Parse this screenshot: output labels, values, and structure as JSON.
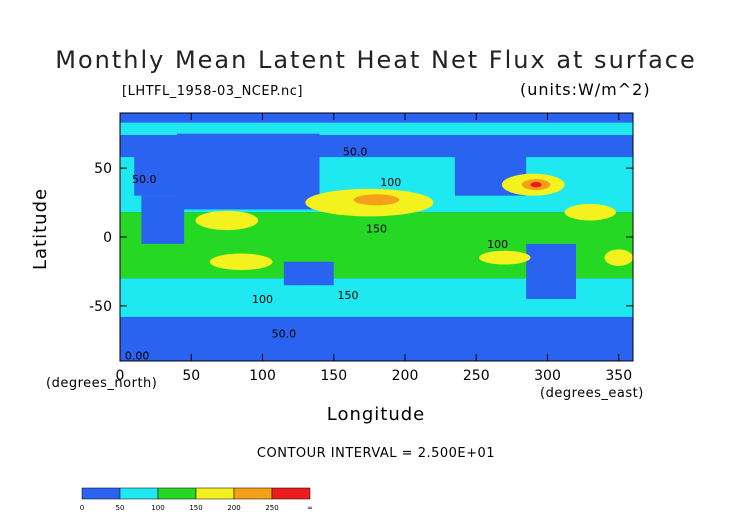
{
  "chart_data": {
    "type": "heatmap",
    "title": "Monthly Mean Latent Heat Net Flux at surface",
    "subtitle": "[LHTFL_1958-03_NCEP.nc]",
    "units_label": "(units:W/m^2)",
    "xlabel": "Longitude",
    "ylabel": "Latitude",
    "x_unit_label": "(degrees_east)",
    "y_unit_label": "(degrees_north)",
    "xlim": [
      0,
      360
    ],
    "ylim": [
      -90,
      90
    ],
    "x_ticks": [
      0,
      50,
      100,
      150,
      200,
      250,
      300,
      350
    ],
    "y_ticks": [
      -50,
      0,
      50
    ],
    "contour_interval_text": "CONTOUR INTERVAL = 2.500E+01",
    "contour_labels": [
      {
        "text": "50.0",
        "lon": 165,
        "lat": 62
      },
      {
        "text": "100",
        "lon": 190,
        "lat": 40
      },
      {
        "text": "50.0",
        "lon": 17,
        "lat": 42
      },
      {
        "text": "150",
        "lon": 180,
        "lat": 6
      },
      {
        "text": "100",
        "lon": 265,
        "lat": -5
      },
      {
        "text": "100",
        "lon": 100,
        "lat": -45
      },
      {
        "text": "150",
        "lon": 160,
        "lat": -42
      },
      {
        "text": "50.0",
        "lon": 115,
        "lat": -70
      },
      {
        "text": "0.00",
        "lon": 12,
        "lat": -86
      }
    ],
    "levels": [
      {
        "range": [
          0,
          50
        ],
        "color": "#2a63f0"
      },
      {
        "range": [
          50,
          100
        ],
        "color": "#1ee8f0"
      },
      {
        "range": [
          100,
          150
        ],
        "color": "#24d824"
      },
      {
        "range": [
          150,
          200
        ],
        "color": "#f4f21e"
      },
      {
        "range": [
          200,
          250
        ],
        "color": "#f4a018"
      },
      {
        "range": [
          250,
          300
        ],
        "color": "#ee1c1c"
      }
    ],
    "colorbar_ticks": [
      "0",
      "50",
      "100",
      "150",
      "200",
      "250",
      "∞"
    ]
  }
}
